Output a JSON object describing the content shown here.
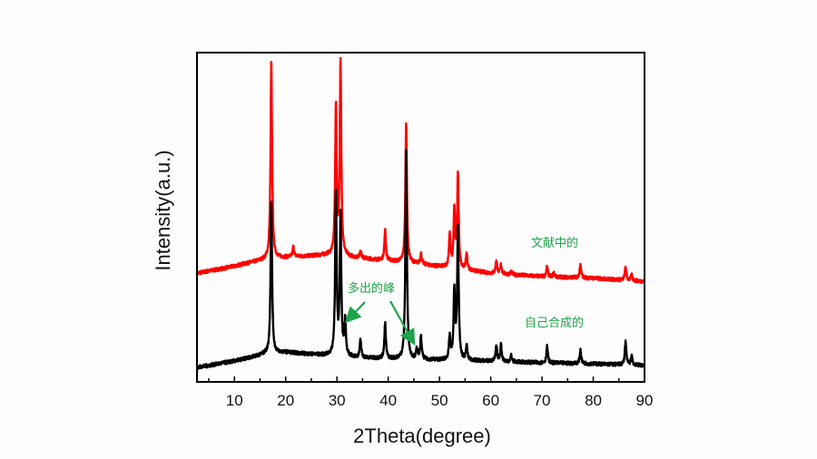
{
  "chart_data": {
    "type": "line",
    "title": "",
    "xlabel": "2Theta(degree)",
    "ylabel": "Intensity(a.u.)",
    "xlim": [
      2.7,
      90
    ],
    "ylim": [
      0,
      100
    ],
    "xticks": [
      10,
      20,
      30,
      40,
      50,
      60,
      70,
      80,
      90
    ],
    "minor_tick_step": 5,
    "grid": false,
    "series": [
      {
        "name": "文献中的",
        "color": "#ff0000",
        "baseline": [
          [
            2.7,
            33
          ],
          [
            8,
            34.5
          ],
          [
            14,
            36.5
          ],
          [
            17,
            37.5
          ],
          [
            22,
            38
          ],
          [
            28,
            38.5
          ],
          [
            35,
            37.5
          ],
          [
            45,
            36
          ],
          [
            55,
            34
          ],
          [
            60,
            33
          ],
          [
            70,
            32
          ],
          [
            80,
            31.5
          ],
          [
            90,
            30.5
          ]
        ],
        "peaks": [
          [
            17.2,
            97.5
          ],
          [
            21.5,
            41
          ],
          [
            29.8,
            83
          ],
          [
            30.7,
            97
          ],
          [
            34.6,
            40
          ],
          [
            39.4,
            46
          ],
          [
            43.5,
            79
          ],
          [
            46.4,
            39
          ],
          [
            52.0,
            45
          ],
          [
            52.9,
            52
          ],
          [
            53.6,
            63
          ],
          [
            55.3,
            39
          ],
          [
            61.1,
            37
          ],
          [
            62.0,
            35.5
          ],
          [
            64.0,
            33.5
          ],
          [
            71.0,
            35
          ],
          [
            72.3,
            33
          ],
          [
            77.5,
            35.5
          ],
          [
            86.3,
            35
          ],
          [
            87.5,
            32.5
          ]
        ]
      },
      {
        "name": "自己合成的",
        "color": "#000000",
        "baseline": [
          [
            2.7,
            4.4
          ],
          [
            10,
            6.3
          ],
          [
            16,
            8.5
          ],
          [
            20,
            9
          ],
          [
            28,
            8
          ],
          [
            35,
            7.3
          ],
          [
            45,
            6.8
          ],
          [
            55,
            6.5
          ],
          [
            60,
            6.3
          ],
          [
            70,
            5.8
          ],
          [
            80,
            5.5
          ],
          [
            90,
            5
          ]
        ],
        "peaks": [
          [
            17.2,
            55
          ],
          [
            29.8,
            57
          ],
          [
            30.7,
            50
          ],
          [
            31.6,
            18
          ],
          [
            34.6,
            12.7
          ],
          [
            39.4,
            17.6
          ],
          [
            43.5,
            70.5
          ],
          [
            45.6,
            10
          ],
          [
            46.4,
            13.5
          ],
          [
            52.0,
            13.5
          ],
          [
            52.9,
            27
          ],
          [
            53.6,
            47
          ],
          [
            55.3,
            10.8
          ],
          [
            61.1,
            10.8
          ],
          [
            62.0,
            11.3
          ],
          [
            64.0,
            8
          ],
          [
            71.0,
            10.8
          ],
          [
            77.5,
            9.7
          ],
          [
            86.3,
            12.4
          ],
          [
            87.5,
            8
          ]
        ]
      }
    ],
    "annotations": [
      {
        "text": "文献中的",
        "target": "red-curve"
      },
      {
        "text": "多出的峰",
        "arrows_to": [
          31.6,
          45.6
        ]
      },
      {
        "text": "自己合成的",
        "target": "black-curve"
      }
    ]
  }
}
